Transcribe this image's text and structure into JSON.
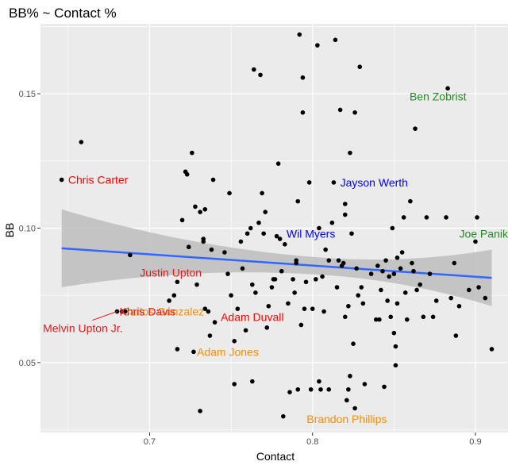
{
  "chart_data": {
    "type": "scatter",
    "title": "BB%  ~ Contact %",
    "xlabel": "Contact",
    "ylabel": "BB",
    "xlim": [
      0.633,
      0.92
    ],
    "ylim": [
      0.024,
      0.176
    ],
    "x_ticks": [
      0.7,
      0.8,
      0.9
    ],
    "x_tick_labels": [
      "0.7",
      "0.8",
      "0.9"
    ],
    "y_ticks": [
      0.05,
      0.1,
      0.15
    ],
    "y_tick_labels": [
      "0.05",
      "0.10",
      "0.15"
    ],
    "grid": true,
    "background": "#ebebeb",
    "point_color": "#000000",
    "trend": {
      "method": "linear fit with confidence band",
      "x": [
        0.646,
        0.91
      ],
      "y": [
        0.0925,
        0.0815
      ],
      "band_upper": [
        0.107,
        0.092
      ],
      "band_lower": [
        0.078,
        0.071
      ],
      "line_color": "#3366ff",
      "band_color": "#bdbdbd"
    },
    "points": [
      [
        0.646,
        0.118
      ],
      [
        0.658,
        0.132
      ],
      [
        0.688,
        0.09
      ],
      [
        0.68,
        0.069
      ],
      [
        0.683,
        0.069
      ],
      [
        0.685,
        0.069
      ],
      [
        0.712,
        0.073
      ],
      [
        0.715,
        0.075
      ],
      [
        0.717,
        0.08
      ],
      [
        0.717,
        0.055
      ],
      [
        0.72,
        0.103
      ],
      [
        0.722,
        0.121
      ],
      [
        0.723,
        0.12
      ],
      [
        0.724,
        0.093
      ],
      [
        0.726,
        0.128
      ],
      [
        0.727,
        0.054
      ],
      [
        0.728,
        0.108
      ],
      [
        0.729,
        0.079
      ],
      [
        0.731,
        0.106
      ],
      [
        0.731,
        0.032
      ],
      [
        0.733,
        0.096
      ],
      [
        0.733,
        0.095
      ],
      [
        0.734,
        0.107
      ],
      [
        0.734,
        0.07
      ],
      [
        0.736,
        0.069
      ],
      [
        0.737,
        0.06
      ],
      [
        0.738,
        0.092
      ],
      [
        0.739,
        0.118
      ],
      [
        0.74,
        0.065
      ],
      [
        0.746,
        0.091
      ],
      [
        0.748,
        0.083
      ],
      [
        0.749,
        0.113
      ],
      [
        0.75,
        0.075
      ],
      [
        0.752,
        0.058
      ],
      [
        0.752,
        0.042
      ],
      [
        0.754,
        0.07
      ],
      [
        0.756,
        0.095
      ],
      [
        0.757,
        0.085
      ],
      [
        0.759,
        0.062
      ],
      [
        0.76,
        0.098
      ],
      [
        0.762,
        0.1
      ],
      [
        0.763,
        0.079
      ],
      [
        0.763,
        0.043
      ],
      [
        0.764,
        0.159
      ],
      [
        0.765,
        0.076
      ],
      [
        0.767,
        0.102
      ],
      [
        0.768,
        0.157
      ],
      [
        0.769,
        0.113
      ],
      [
        0.77,
        0.098
      ],
      [
        0.771,
        0.106
      ],
      [
        0.772,
        0.063
      ],
      [
        0.773,
        0.071
      ],
      [
        0.775,
        0.078
      ],
      [
        0.776,
        0.081
      ],
      [
        0.777,
        0.081
      ],
      [
        0.778,
        0.097
      ],
      [
        0.779,
        0.124
      ],
      [
        0.78,
        0.096
      ],
      [
        0.781,
        0.084
      ],
      [
        0.782,
        0.03
      ],
      [
        0.783,
        0.094
      ],
      [
        0.785,
        0.072
      ],
      [
        0.786,
        0.039
      ],
      [
        0.788,
        0.081
      ],
      [
        0.789,
        0.076
      ],
      [
        0.79,
        0.088
      ],
      [
        0.79,
        0.087
      ],
      [
        0.791,
        0.04
      ],
      [
        0.791,
        0.11
      ],
      [
        0.792,
        0.172
      ],
      [
        0.793,
        0.064
      ],
      [
        0.794,
        0.143
      ],
      [
        0.794,
        0.156
      ],
      [
        0.795,
        0.07
      ],
      [
        0.796,
        0.08
      ],
      [
        0.798,
        0.117
      ],
      [
        0.799,
        0.04
      ],
      [
        0.8,
        0.07
      ],
      [
        0.802,
        0.081
      ],
      [
        0.803,
        0.168
      ],
      [
        0.804,
        0.1
      ],
      [
        0.804,
        0.043
      ],
      [
        0.805,
        0.04
      ],
      [
        0.806,
        0.082
      ],
      [
        0.807,
        0.069
      ],
      [
        0.808,
        0.092
      ],
      [
        0.81,
        0.088
      ],
      [
        0.81,
        0.04
      ],
      [
        0.812,
        0.102
      ],
      [
        0.813,
        0.117
      ],
      [
        0.814,
        0.17
      ],
      [
        0.815,
        0.078
      ],
      [
        0.816,
        0.088
      ],
      [
        0.817,
        0.144
      ],
      [
        0.818,
        0.086
      ],
      [
        0.819,
        0.087
      ],
      [
        0.82,
        0.105
      ],
      [
        0.82,
        0.109
      ],
      [
        0.82,
        0.067
      ],
      [
        0.821,
        0.036
      ],
      [
        0.822,
        0.04
      ],
      [
        0.822,
        0.071
      ],
      [
        0.823,
        0.128
      ],
      [
        0.823,
        0.045
      ],
      [
        0.824,
        0.098
      ],
      [
        0.825,
        0.057
      ],
      [
        0.826,
        0.143
      ],
      [
        0.826,
        0.033
      ],
      [
        0.827,
        0.085
      ],
      [
        0.828,
        0.075
      ],
      [
        0.829,
        0.16
      ],
      [
        0.83,
        0.078
      ],
      [
        0.831,
        0.072
      ],
      [
        0.832,
        0.042
      ],
      [
        0.836,
        0.083
      ],
      [
        0.839,
        0.066
      ],
      [
        0.84,
        0.086
      ],
      [
        0.841,
        0.066
      ],
      [
        0.842,
        0.077
      ],
      [
        0.843,
        0.084
      ],
      [
        0.844,
        0.041
      ],
      [
        0.845,
        0.088
      ],
      [
        0.846,
        0.073
      ],
      [
        0.847,
        0.082
      ],
      [
        0.848,
        0.067
      ],
      [
        0.849,
        0.1
      ],
      [
        0.85,
        0.083
      ],
      [
        0.85,
        0.061
      ],
      [
        0.851,
        0.056
      ],
      [
        0.851,
        0.049
      ],
      [
        0.852,
        0.072
      ],
      [
        0.852,
        0.089
      ],
      [
        0.854,
        0.085
      ],
      [
        0.855,
        0.091
      ],
      [
        0.856,
        0.104
      ],
      [
        0.857,
        0.076
      ],
      [
        0.858,
        0.066
      ],
      [
        0.86,
        0.11
      ],
      [
        0.861,
        0.087
      ],
      [
        0.862,
        0.084
      ],
      [
        0.863,
        0.137
      ],
      [
        0.864,
        0.077
      ],
      [
        0.866,
        0.079
      ],
      [
        0.868,
        0.067
      ],
      [
        0.87,
        0.104
      ],
      [
        0.872,
        0.083
      ],
      [
        0.874,
        0.067
      ],
      [
        0.876,
        0.073
      ],
      [
        0.882,
        0.104
      ],
      [
        0.883,
        0.152
      ],
      [
        0.885,
        0.074
      ],
      [
        0.887,
        0.087
      ],
      [
        0.888,
        0.06
      ],
      [
        0.89,
        0.071
      ],
      [
        0.896,
        0.077
      ],
      [
        0.9,
        0.095
      ],
      [
        0.901,
        0.104
      ],
      [
        0.902,
        0.078
      ],
      [
        0.906,
        0.074
      ],
      [
        0.91,
        0.055
      ]
    ],
    "labels": [
      {
        "text": "Chris Carter",
        "x": 0.646,
        "y": 0.118,
        "color": "#ff0000",
        "anchor": "start",
        "dx": 0.004,
        "dy": 0
      },
      {
        "text": "Jayson Werth",
        "x": 0.813,
        "y": 0.117,
        "color": "#0000ff",
        "anchor": "start",
        "dx": 0.004,
        "dy": 0
      },
      {
        "text": "Ben Zobrist",
        "x": 0.883,
        "y": 0.152,
        "color": "#228b22",
        "anchor": "middle",
        "dx": -0.006,
        "dy": -0.003
      },
      {
        "text": "Wil Myers",
        "x": 0.78,
        "y": 0.096,
        "color": "#0000ff",
        "anchor": "start",
        "dx": 0.004,
        "dy": 0.002
      },
      {
        "text": "Joe Panik",
        "x": 0.9,
        "y": 0.095,
        "color": "#228b22",
        "anchor": "middle",
        "dx": 0.005,
        "dy": 0.003
      },
      {
        "text": "Justin Upton",
        "x": 0.737,
        "y": 0.076,
        "color": "#e31a1c",
        "anchor": "middle",
        "dx": -0.024,
        "dy": 0.0075
      },
      {
        "text": "Carlos Gonzalez",
        "x": 0.686,
        "y": 0.069,
        "color": "#ff8c00",
        "anchor": "start",
        "dx": -0.003,
        "dy": 0.0
      },
      {
        "text": "Khris Davis",
        "x": 0.684,
        "y": 0.069,
        "color": "#e31a1c",
        "anchor": "start",
        "dx": -0.0025,
        "dy": 0.0
      },
      {
        "text": "Melvin Upton Jr.",
        "x": 0.68,
        "y": 0.069,
        "color": "#e31a1c",
        "anchor": "middle",
        "dx": -0.021,
        "dy": -0.0062,
        "leader": true
      },
      {
        "text": "Adam Duvall",
        "x": 0.753,
        "y": 0.067,
        "color": "#ff0000",
        "anchor": "middle",
        "dx": 0.01,
        "dy": 0.0
      },
      {
        "text": "Adam Jones",
        "x": 0.727,
        "y": 0.054,
        "color": "#ff8c00",
        "anchor": "start",
        "dx": 0.002,
        "dy": 0.0
      },
      {
        "text": "Brandon Phillips",
        "x": 0.821,
        "y": 0.031,
        "color": "#ff8c00",
        "anchor": "middle",
        "dx": 0.0,
        "dy": -0.002
      }
    ]
  }
}
